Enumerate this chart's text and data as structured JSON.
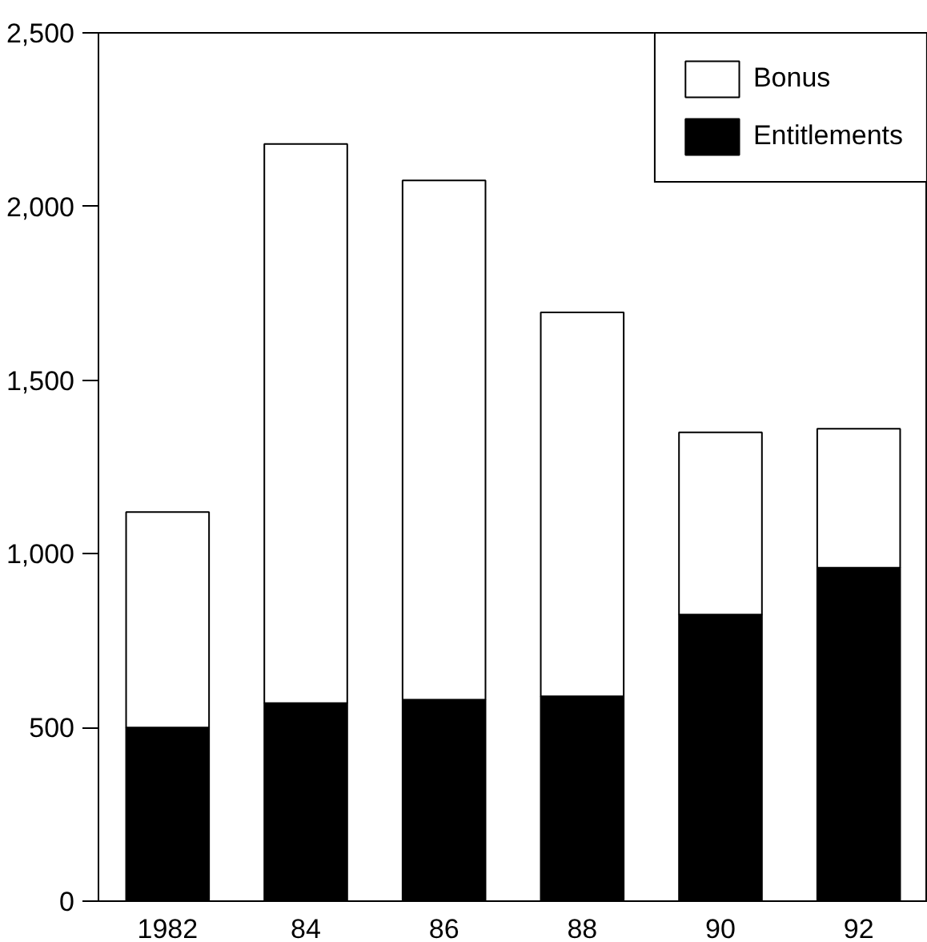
{
  "chart_data": {
    "type": "bar",
    "stacked": true,
    "categories": [
      "1982",
      "84",
      "86",
      "88",
      "90",
      "92"
    ],
    "series": [
      {
        "name": "Entitlements",
        "color": "#000000",
        "values": [
          500,
          570,
          580,
          590,
          825,
          960
        ]
      },
      {
        "name": "Bonus",
        "color": "#ffffff",
        "values": [
          620,
          1610,
          1495,
          1105,
          525,
          400
        ]
      }
    ],
    "ylim": [
      0,
      2500
    ],
    "yticks": [
      0,
      {
        "value": 500,
        "label": "500"
      },
      {
        "value": 1000,
        "label": "1,000"
      },
      {
        "value": 1500,
        "label": "1,500"
      },
      {
        "value": 2000,
        "label": "2,000"
      },
      {
        "value": 2500,
        "label": "2,500"
      }
    ],
    "grid": false,
    "legend": "top right"
  }
}
